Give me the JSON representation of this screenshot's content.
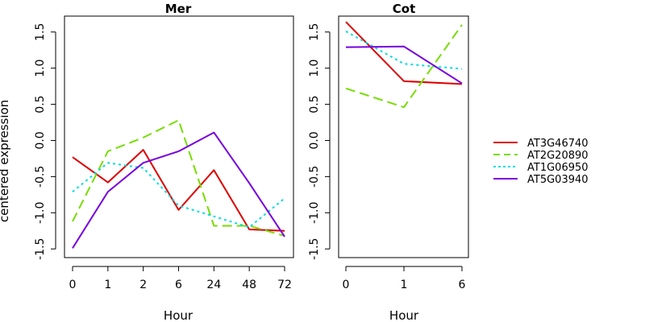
{
  "chart_data": {
    "type": "line",
    "ylabel": "centered expression",
    "ylim": [
      -1.62,
      1.72
    ],
    "yticks": [
      -1.5,
      -1.0,
      -0.5,
      0.0,
      0.5,
      1.0,
      1.5
    ],
    "ytick_labels": [
      "-1.5",
      "-1.0",
      "-0.5",
      "0.0",
      "0.5",
      "1.0",
      "1.5"
    ],
    "legend": {
      "placement": "right",
      "entries": [
        {
          "label": "AT3G46740",
          "color": "#dd0000",
          "dash": "solid"
        },
        {
          "label": "AT2G20890",
          "color": "#77dd00",
          "dash": "dashed"
        },
        {
          "label": "AT1G06950",
          "color": "#00dddd",
          "dash": "dotted"
        },
        {
          "label": "AT5G03940",
          "color": "#7700dd",
          "dash": "solid"
        }
      ]
    },
    "panels": [
      {
        "title": "Mer",
        "xlabel": "Hour",
        "categories": [
          "0",
          "1",
          "2",
          "6",
          "24",
          "48",
          "72"
        ],
        "series": [
          {
            "name": "AT3G46740",
            "values": [
              -0.23,
              -0.58,
              -0.13,
              -0.96,
              -0.41,
              -1.23,
              -1.25
            ]
          },
          {
            "name": "AT2G20890",
            "values": [
              -1.12,
              -0.15,
              0.04,
              0.28,
              -1.18,
              -1.18,
              -1.32
            ]
          },
          {
            "name": "AT1G06950",
            "values": [
              -0.71,
              -0.31,
              -0.38,
              -0.9,
              -1.05,
              -1.2,
              -0.8
            ]
          },
          {
            "name": "AT5G03940",
            "values": [
              -1.49,
              -0.71,
              -0.31,
              -0.15,
              0.11,
              -0.59,
              -1.33
            ]
          }
        ]
      },
      {
        "title": "Cot",
        "xlabel": "Hour",
        "categories": [
          "0",
          "1",
          "6"
        ],
        "series": [
          {
            "name": "AT3G46740",
            "values": [
              1.64,
              0.82,
              0.78
            ]
          },
          {
            "name": "AT2G20890",
            "values": [
              0.72,
              0.46,
              1.6
            ]
          },
          {
            "name": "AT1G06950",
            "values": [
              1.51,
              1.06,
              0.99
            ]
          },
          {
            "name": "AT5G03940",
            "values": [
              1.29,
              1.3,
              0.79
            ]
          }
        ]
      }
    ]
  }
}
